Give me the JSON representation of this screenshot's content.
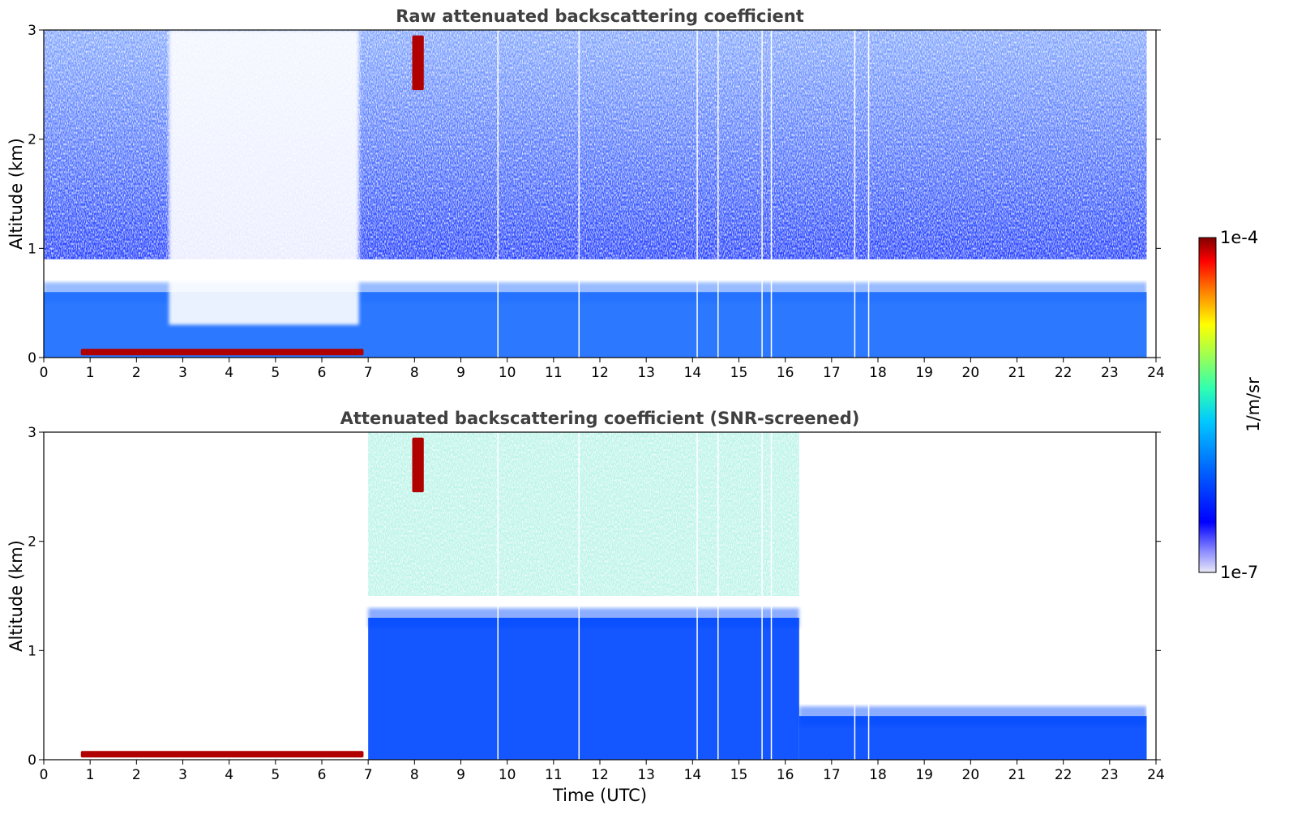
{
  "chart_data": [
    {
      "type": "heatmap",
      "title": "Raw attenuated backscattering coefficient",
      "xlabel": "",
      "ylabel": "Altitude (km)",
      "xlim": [
        0,
        24
      ],
      "ylim": [
        0,
        3
      ],
      "x_ticks": [
        "0",
        "1",
        "2",
        "3",
        "4",
        "5",
        "6",
        "7",
        "8",
        "9",
        "10",
        "11",
        "12",
        "13",
        "14",
        "15",
        "16",
        "17",
        "18",
        "19",
        "20",
        "21",
        "22",
        "23",
        "24"
      ],
      "y_ticks": [
        "0",
        "1",
        "2",
        "3"
      ],
      "data_end_hour": 23.8,
      "features": [
        {
          "kind": "aerosol-layer",
          "x": [
            0,
            23.8
          ],
          "y_top": 0.6,
          "level": "2e-6"
        },
        {
          "kind": "near-surface-strong",
          "x": [
            0.8,
            6.9
          ],
          "y": [
            0.02,
            0.08
          ],
          "level": "1e-4"
        },
        {
          "kind": "cloud",
          "x": [
            7.95,
            8.2
          ],
          "y": [
            2.45,
            2.95
          ],
          "level": "1e-4"
        },
        {
          "kind": "clear-gap",
          "x": [
            2.7,
            6.8
          ],
          "y": [
            0.3,
            3.0
          ],
          "level": "none"
        }
      ],
      "missing_profiles": [
        9.8,
        11.55,
        14.1,
        14.55,
        15.5,
        15.7,
        17.5,
        17.8
      ]
    },
    {
      "type": "heatmap",
      "title": "Attenuated backscattering coefficient (SNR-screened)",
      "xlabel": "Time (UTC)",
      "ylabel": "Altitude (km)",
      "xlim": [
        0,
        24
      ],
      "ylim": [
        0,
        3
      ],
      "x_ticks": [
        "0",
        "1",
        "2",
        "3",
        "4",
        "5",
        "6",
        "7",
        "8",
        "9",
        "10",
        "11",
        "12",
        "13",
        "14",
        "15",
        "16",
        "17",
        "18",
        "19",
        "20",
        "21",
        "22",
        "23",
        "24"
      ],
      "y_ticks": [
        "0",
        "1",
        "2",
        "3"
      ],
      "data_end_hour": 23.8,
      "features": [
        {
          "kind": "boundary-layer",
          "x": [
            7.0,
            16.3
          ],
          "y_top": 1.3,
          "level": "1e-6"
        },
        {
          "kind": "boundary-layer",
          "x": [
            16.3,
            23.8
          ],
          "y_top": 0.4,
          "level": "1e-6"
        },
        {
          "kind": "near-surface-strong",
          "x": [
            0.8,
            6.9
          ],
          "y": [
            0.02,
            0.08
          ],
          "level": "1e-4"
        },
        {
          "kind": "cloud",
          "x": [
            7.95,
            8.2
          ],
          "y": [
            2.45,
            2.95
          ],
          "level": "1e-4"
        }
      ],
      "missing_profiles": [
        9.8,
        11.55,
        14.1,
        14.55,
        15.5,
        15.7,
        17.5,
        17.8
      ]
    }
  ],
  "colorbar": {
    "label": "1/m/sr",
    "max_label": "1e-4",
    "min_label": "1e-7",
    "scale": "log",
    "colormap": [
      "#e8e8f8",
      "#9090ff",
      "#0000ff",
      "#0060ff",
      "#00c8ff",
      "#30ffb0",
      "#a0ff50",
      "#ffff00",
      "#ff8000",
      "#ff0000",
      "#800000"
    ]
  }
}
